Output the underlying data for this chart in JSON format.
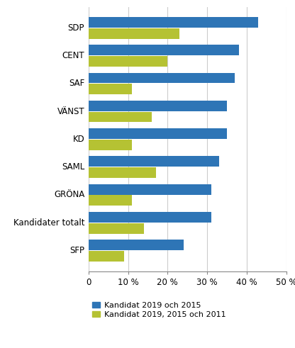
{
  "categories": [
    "SDP",
    "CENT",
    "SAF",
    "VÄNST",
    "KD",
    "SAML",
    "GRÖNA",
    "Kandidater totalt",
    "SFP"
  ],
  "blue_values": [
    43,
    38,
    37,
    35,
    35,
    33,
    31,
    31,
    24
  ],
  "green_values": [
    23,
    20,
    11,
    16,
    11,
    17,
    11,
    14,
    9
  ],
  "blue_color": "#2E75B6",
  "green_color": "#B5C233",
  "legend_blue": "Kandidat 2019 och 2015",
  "legend_green": "Kandidat 2019, 2015 och 2011",
  "xlim": [
    0,
    50
  ],
  "xticks": [
    0,
    10,
    20,
    30,
    40,
    50
  ],
  "xtick_labels": [
    "0",
    "10 %",
    "20 %",
    "30 %",
    "40 %",
    "50 %"
  ],
  "bg_color": "#FFFFFF",
  "grid_color": "#CCCCCC",
  "bar_height": 0.38,
  "bar_gap": 0.02
}
